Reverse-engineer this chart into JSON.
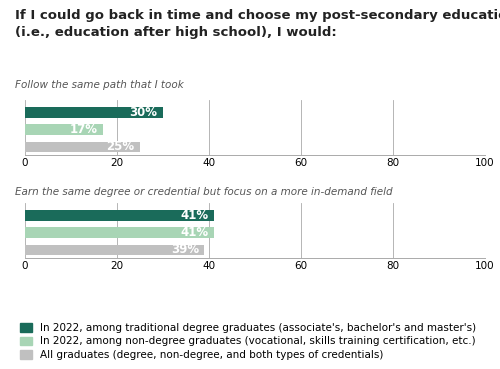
{
  "title_line1": "If I could go back in time and choose my post-secondary education path",
  "title_line2": "(i.e., education after high school), I would:",
  "sections": [
    {
      "label": "Follow the same path that I took",
      "bars": [
        30,
        17,
        25
      ]
    },
    {
      "label": "Earn the same degree or credential but focus on a more in-demand field",
      "bars": [
        41,
        41,
        39
      ]
    }
  ],
  "bar_colors": [
    "#1a6b5a",
    "#a8d5b5",
    "#c0c0c0"
  ],
  "xlim": [
    0,
    100
  ],
  "xticks": [
    0,
    20,
    40,
    60,
    80,
    100
  ],
  "legend_labels": [
    "In 2022, among traditional degree graduates (associate's, bachelor's and master's)",
    "In 2022, among non-degree graduates (vocational, skills training certification, etc.)",
    "All graduates (degree, non-degree, and both types of credentials)"
  ],
  "bar_height": 0.6,
  "tick_fontsize": 7.5,
  "title_fontsize": 9.5,
  "section_label_fontsize": 7.5,
  "pct_fontsize": 8.5,
  "legend_fontsize": 7.5,
  "background_color": "#ffffff",
  "grid_color": "#aaaaaa",
  "text_color": "#222222"
}
